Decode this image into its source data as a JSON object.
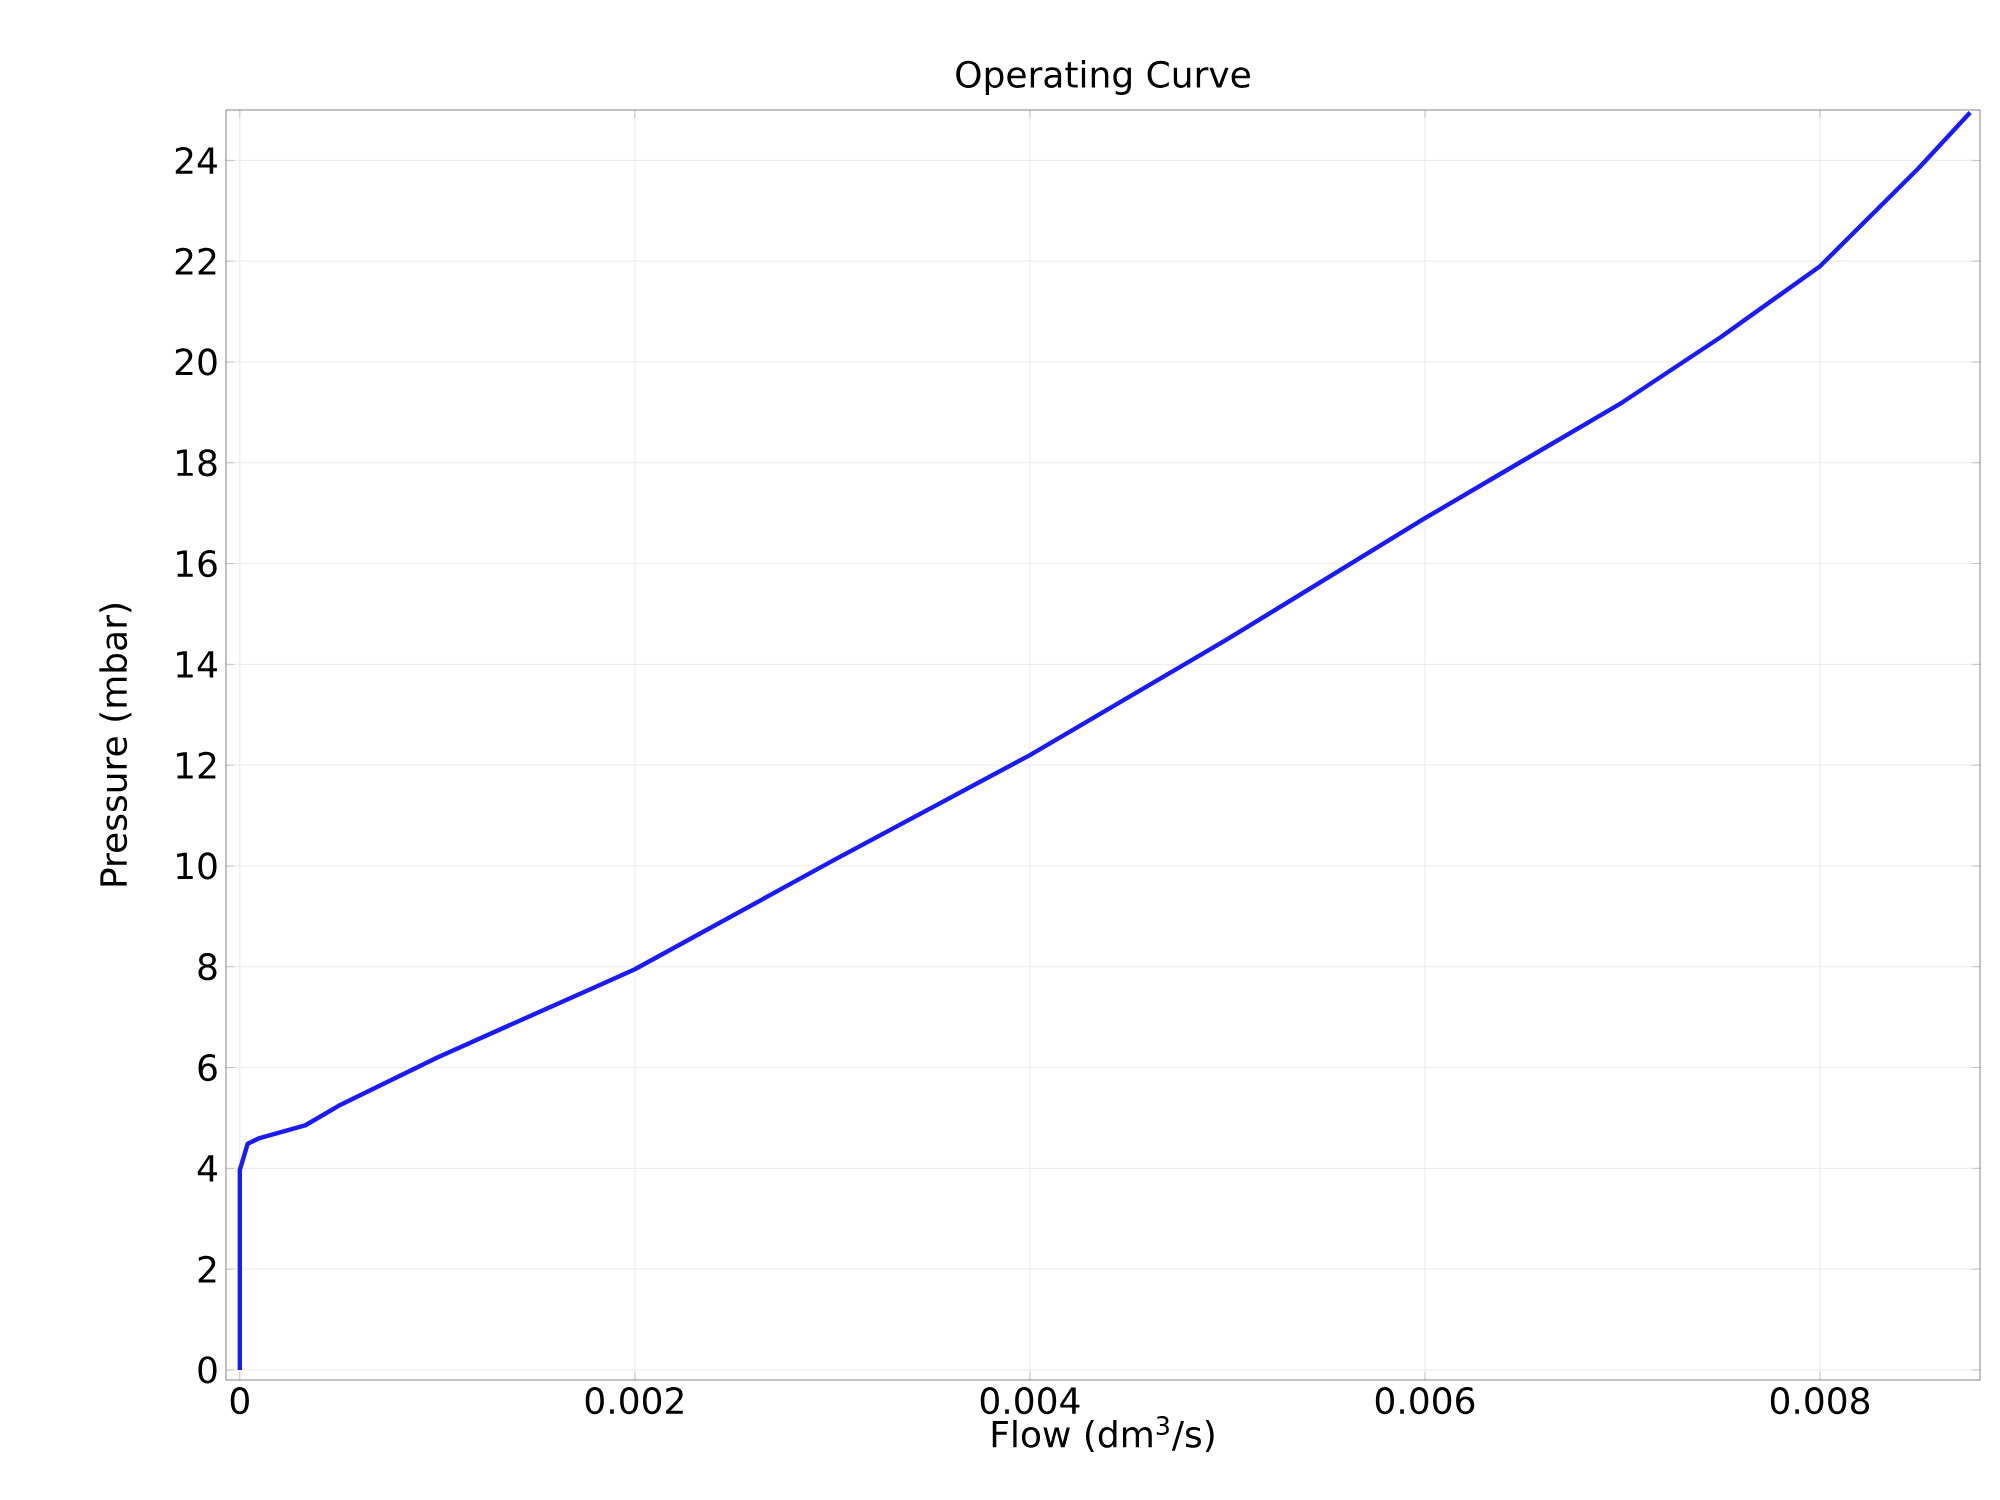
{
  "chart_data": {
    "type": "line",
    "title": "Operating Curve",
    "xlabel": "Flow (dm$^{3}$/s)",
    "ylabel": "Pressure (mbar)",
    "x": [
      0,
      0,
      4e-05,
      0.0001,
      0.00033,
      0.0005,
      0.001,
      0.0018,
      0.002,
      0.003,
      0.004,
      0.005,
      0.006,
      0.007,
      0.0075,
      0.008,
      0.0085,
      0.00876
    ],
    "series": [
      {
        "color": "#1a1aff",
        "values": [
          0,
          3.97,
          4.49,
          4.6,
          4.85,
          5.24,
          6.2,
          7.6,
          7.95,
          10.1,
          12.2,
          14.5,
          16.9,
          19.2,
          20.5,
          21.9,
          23.85,
          24.95
        ]
      }
    ],
    "xlim": [
      -7e-05,
      0.00881
    ],
    "ylim": [
      -0.2,
      25.0
    ],
    "xticks": [
      0,
      0.002,
      0.004,
      0.006,
      0.008
    ],
    "yticks": [
      0,
      2,
      4,
      6,
      8,
      10,
      12,
      14,
      16,
      18,
      20,
      22,
      24
    ],
    "grid": true,
    "marker": "none",
    "line_style": "solid"
  }
}
